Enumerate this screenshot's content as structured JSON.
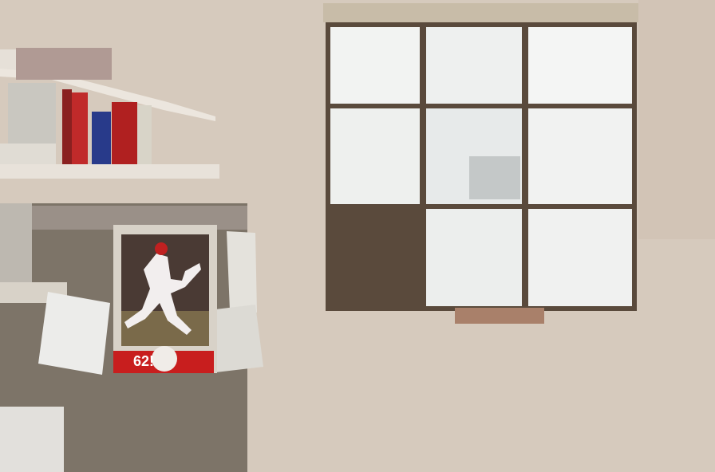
{
  "image": {
    "poster_text": "62!",
    "colors": {
      "wall": "#d9cdbf",
      "shirt": "#2c3d5c",
      "skin": "#c99a80",
      "hair": "#3b3128",
      "eye_box": "#00e000",
      "eye_line": "#1010d0"
    }
  }
}
